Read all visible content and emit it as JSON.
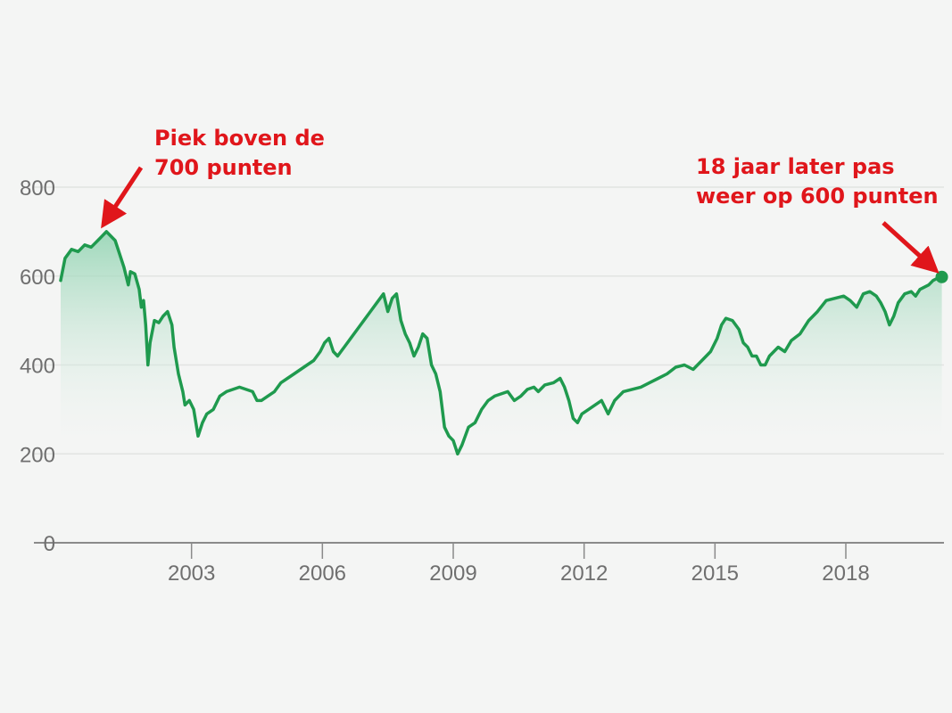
{
  "chart_data": {
    "type": "area",
    "title": "",
    "xlabel": "",
    "ylabel": "",
    "ylim": [
      0,
      800
    ],
    "xlim": [
      2000.0,
      2020.25
    ],
    "grid": true,
    "legend": "none",
    "colors": {
      "line": "#1f9a4e",
      "fill_top": "#8fd3b0",
      "fill_bottom": "#f4f5f4",
      "grid": "#e2e4e2",
      "axis": "#8a8a8a",
      "annotation": "#e0161b",
      "background": "#f4f5f4"
    },
    "y_ticks": [
      {
        "value": 0,
        "label": "0"
      },
      {
        "value": 200,
        "label": "200"
      },
      {
        "value": 400,
        "label": "400"
      },
      {
        "value": 600,
        "label": "600"
      },
      {
        "value": 800,
        "label": "800"
      }
    ],
    "x_ticks": [
      {
        "value": 2003,
        "label": "2003"
      },
      {
        "value": 2006,
        "label": "2006"
      },
      {
        "value": 2009,
        "label": "2009"
      },
      {
        "value": 2012,
        "label": "2012"
      },
      {
        "value": 2015,
        "label": "2015"
      },
      {
        "value": 2018,
        "label": "2018"
      }
    ],
    "series": [
      {
        "points": [
          [
            2000.0,
            590
          ],
          [
            2000.1,
            640
          ],
          [
            2000.25,
            660
          ],
          [
            2000.4,
            655
          ],
          [
            2000.55,
            670
          ],
          [
            2000.7,
            665
          ],
          [
            2000.85,
            680
          ],
          [
            2000.95,
            690
          ],
          [
            2001.05,
            700
          ],
          [
            2001.15,
            690
          ],
          [
            2001.25,
            680
          ],
          [
            2001.35,
            650
          ],
          [
            2001.45,
            620
          ],
          [
            2001.55,
            580
          ],
          [
            2001.6,
            610
          ],
          [
            2001.7,
            605
          ],
          [
            2001.8,
            570
          ],
          [
            2001.85,
            530
          ],
          [
            2001.9,
            545
          ],
          [
            2001.95,
            490
          ],
          [
            2002.0,
            400
          ],
          [
            2002.05,
            450
          ],
          [
            2002.15,
            500
          ],
          [
            2002.25,
            495
          ],
          [
            2002.35,
            510
          ],
          [
            2002.45,
            520
          ],
          [
            2002.55,
            490
          ],
          [
            2002.6,
            440
          ],
          [
            2002.7,
            380
          ],
          [
            2002.8,
            340
          ],
          [
            2002.85,
            310
          ],
          [
            2002.95,
            320
          ],
          [
            2003.05,
            300
          ],
          [
            2003.15,
            240
          ],
          [
            2003.25,
            270
          ],
          [
            2003.35,
            290
          ],
          [
            2003.5,
            300
          ],
          [
            2003.65,
            330
          ],
          [
            2003.8,
            340
          ],
          [
            2003.95,
            345
          ],
          [
            2004.1,
            350
          ],
          [
            2004.25,
            345
          ],
          [
            2004.4,
            340
          ],
          [
            2004.5,
            320
          ],
          [
            2004.6,
            320
          ],
          [
            2004.75,
            330
          ],
          [
            2004.9,
            340
          ],
          [
            2005.05,
            360
          ],
          [
            2005.2,
            370
          ],
          [
            2005.35,
            380
          ],
          [
            2005.5,
            390
          ],
          [
            2005.65,
            400
          ],
          [
            2005.8,
            410
          ],
          [
            2005.95,
            430
          ],
          [
            2006.05,
            450
          ],
          [
            2006.15,
            460
          ],
          [
            2006.25,
            430
          ],
          [
            2006.35,
            420
          ],
          [
            2006.5,
            440
          ],
          [
            2006.65,
            460
          ],
          [
            2006.8,
            480
          ],
          [
            2006.95,
            500
          ],
          [
            2007.1,
            520
          ],
          [
            2007.25,
            540
          ],
          [
            2007.4,
            560
          ],
          [
            2007.5,
            520
          ],
          [
            2007.6,
            550
          ],
          [
            2007.7,
            560
          ],
          [
            2007.8,
            500
          ],
          [
            2007.9,
            470
          ],
          [
            2008.0,
            450
          ],
          [
            2008.1,
            420
          ],
          [
            2008.2,
            440
          ],
          [
            2008.3,
            470
          ],
          [
            2008.4,
            460
          ],
          [
            2008.5,
            400
          ],
          [
            2008.6,
            380
          ],
          [
            2008.7,
            340
          ],
          [
            2008.8,
            260
          ],
          [
            2008.9,
            240
          ],
          [
            2009.0,
            230
          ],
          [
            2009.1,
            200
          ],
          [
            2009.2,
            220
          ],
          [
            2009.35,
            260
          ],
          [
            2009.5,
            270
          ],
          [
            2009.65,
            300
          ],
          [
            2009.8,
            320
          ],
          [
            2009.95,
            330
          ],
          [
            2010.1,
            335
          ],
          [
            2010.25,
            340
          ],
          [
            2010.4,
            320
          ],
          [
            2010.55,
            330
          ],
          [
            2010.7,
            345
          ],
          [
            2010.85,
            350
          ],
          [
            2010.95,
            340
          ],
          [
            2011.1,
            355
          ],
          [
            2011.3,
            360
          ],
          [
            2011.45,
            370
          ],
          [
            2011.55,
            350
          ],
          [
            2011.65,
            320
          ],
          [
            2011.75,
            280
          ],
          [
            2011.85,
            270
          ],
          [
            2011.95,
            290
          ],
          [
            2012.1,
            300
          ],
          [
            2012.25,
            310
          ],
          [
            2012.4,
            320
          ],
          [
            2012.55,
            290
          ],
          [
            2012.7,
            320
          ],
          [
            2012.9,
            340
          ],
          [
            2013.1,
            345
          ],
          [
            2013.3,
            350
          ],
          [
            2013.5,
            360
          ],
          [
            2013.7,
            370
          ],
          [
            2013.9,
            380
          ],
          [
            2014.1,
            395
          ],
          [
            2014.3,
            400
          ],
          [
            2014.5,
            390
          ],
          [
            2014.7,
            410
          ],
          [
            2014.9,
            430
          ],
          [
            2015.05,
            460
          ],
          [
            2015.15,
            490
          ],
          [
            2015.25,
            505
          ],
          [
            2015.4,
            500
          ],
          [
            2015.55,
            480
          ],
          [
            2015.65,
            450
          ],
          [
            2015.75,
            440
          ],
          [
            2015.85,
            420
          ],
          [
            2015.95,
            420
          ],
          [
            2016.05,
            400
          ],
          [
            2016.15,
            400
          ],
          [
            2016.25,
            420
          ],
          [
            2016.45,
            440
          ],
          [
            2016.6,
            430
          ],
          [
            2016.75,
            455
          ],
          [
            2016.95,
            470
          ],
          [
            2017.15,
            500
          ],
          [
            2017.35,
            520
          ],
          [
            2017.55,
            545
          ],
          [
            2017.75,
            550
          ],
          [
            2017.95,
            555
          ],
          [
            2018.1,
            545
          ],
          [
            2018.25,
            530
          ],
          [
            2018.4,
            560
          ],
          [
            2018.55,
            565
          ],
          [
            2018.7,
            555
          ],
          [
            2018.8,
            540
          ],
          [
            2018.9,
            520
          ],
          [
            2019.0,
            490
          ],
          [
            2019.1,
            510
          ],
          [
            2019.2,
            540
          ],
          [
            2019.35,
            560
          ],
          [
            2019.5,
            565
          ],
          [
            2019.6,
            555
          ],
          [
            2019.7,
            570
          ],
          [
            2019.8,
            575
          ],
          [
            2019.9,
            580
          ],
          [
            2020.0,
            590
          ],
          [
            2020.1,
            595
          ],
          [
            2020.2,
            598
          ]
        ]
      }
    ],
    "highlight_point": [
      2020.2,
      598
    ],
    "annotations": [
      {
        "lines": [
          "Piek boven de",
          "700 punten"
        ],
        "target": [
          2001.05,
          700
        ]
      },
      {
        "lines": [
          "18 jaar later pas",
          "weer op 600 punten"
        ],
        "target": [
          2020.2,
          598
        ]
      }
    ]
  }
}
